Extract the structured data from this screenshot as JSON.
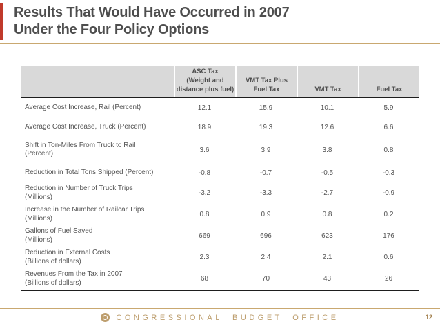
{
  "header": {
    "title": "Results That Would Have Occurred in 2007\nUnder the Four Policy Options"
  },
  "table": {
    "columns": [
      "",
      "ASC Tax\n(Weight and\ndistance plus fuel)",
      "VMT Tax Plus\nFuel Tax",
      "VMT Tax",
      "Fuel Tax"
    ],
    "rows": [
      {
        "label": "Average Cost Increase, Rail (Percent)",
        "values": [
          "12.1",
          "15.9",
          "10.1",
          "5.9"
        ]
      },
      {
        "label": "Average Cost Increase, Truck (Percent)",
        "values": [
          "18.9",
          "19.3",
          "12.6",
          "6.6"
        ]
      },
      {
        "label": "Shift in Ton-Miles From Truck to Rail\n(Percent)",
        "values": [
          "3.6",
          "3.9",
          "3.8",
          "0.8"
        ]
      },
      {
        "label": "Reduction in Total Tons Shipped (Percent)",
        "values": [
          "-0.8",
          "-0.7",
          "-0.5",
          "-0.3"
        ]
      },
      {
        "label": "Reduction in Number of Truck Trips\n(Millions)",
        "values": [
          "-3.2",
          "-3.3",
          "-2.7",
          "-0.9"
        ]
      },
      {
        "label": "Increase in the Number of Railcar Trips\n(Millions)",
        "values": [
          "0.8",
          "0.9",
          "0.8",
          "0.2"
        ]
      },
      {
        "label": "Gallons of Fuel Saved\n(Millions)",
        "values": [
          "669",
          "696",
          "623",
          "176"
        ]
      },
      {
        "label": "Reduction in External Costs\n(Billions of dollars)",
        "values": [
          "2.3",
          "2.4",
          "2.1",
          "0.6"
        ]
      },
      {
        "label": "Revenues From the Tax in 2007\n(Billions of dollars)",
        "values": [
          "68",
          "70",
          "43",
          "26"
        ]
      }
    ]
  },
  "footer": {
    "org_name": "CONGRESSIONAL BUDGET OFFICE",
    "page_number": "12",
    "logo_icon": "cbo-seal-icon"
  },
  "colors": {
    "accent_red": "#C03A2B",
    "gold_tan": "#BD9E6E",
    "rule_tan": "#C9A870",
    "header_gray": "#D9D9D9",
    "text_dark_gray": "#4E4E4E",
    "table_rule_black": "#1E1E1E"
  }
}
